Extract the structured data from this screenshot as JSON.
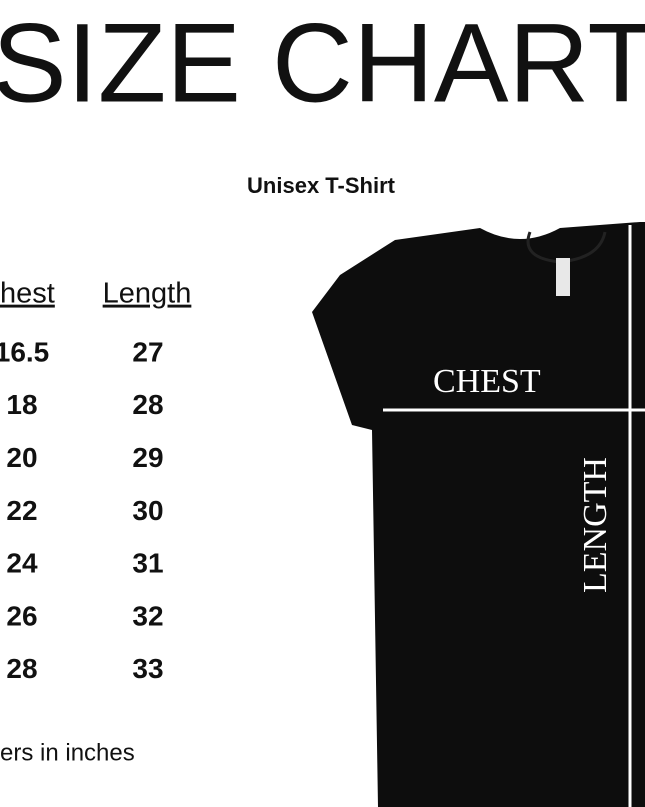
{
  "header": {
    "title": "SIZE CHART",
    "subtitle": "Unisex T-Shirt"
  },
  "table": {
    "columns": [
      "hest",
      "Length"
    ],
    "rows": [
      [
        "16.5",
        "27"
      ],
      [
        "18",
        "28"
      ],
      [
        "20",
        "29"
      ],
      [
        "22",
        "30"
      ],
      [
        "24",
        "31"
      ],
      [
        "26",
        "32"
      ],
      [
        "28",
        "33"
      ]
    ]
  },
  "footer": {
    "note": "ers in inches"
  },
  "diagram": {
    "chest_label": "CHEST",
    "length_label": "LENGTH"
  }
}
